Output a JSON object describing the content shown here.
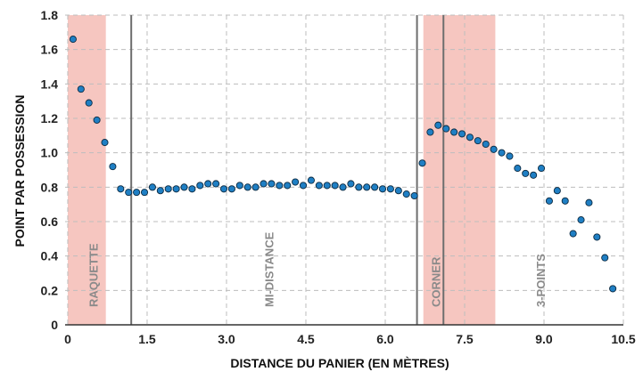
{
  "chart_data": {
    "type": "scatter",
    "title": "",
    "xlabel": "DISTANCE DU PANIER (EN MÈTRES)",
    "ylabel": "POINT PAR POSSESSION",
    "xlim": [
      -0.05,
      10.5
    ],
    "ylim": [
      0,
      1.8
    ],
    "x_ticks": [
      0,
      1.5,
      3.0,
      4.5,
      6.0,
      7.5,
      9.0,
      10.5
    ],
    "x_tick_labels": [
      "0",
      "1.5",
      "3.0",
      "4.5",
      "6.0",
      "7.5",
      "9.0",
      "10.5"
    ],
    "y_ticks": [
      0,
      0.2,
      0.4,
      0.6,
      0.8,
      1.0,
      1.2,
      1.4,
      1.6,
      1.8
    ],
    "y_tick_labels": [
      "0",
      "0.2",
      "0.4",
      "0.6",
      "0.8",
      "1.0",
      "1.2",
      "1.4",
      "1.6",
      "1.8"
    ],
    "grid": true,
    "marker_color": "#1f7fc4",
    "marker_edge_color": "#0d2a40",
    "shaded_regions": [
      {
        "x": [
          0,
          0.72
        ],
        "color": "#f6c6c0"
      },
      {
        "x": [
          6.72,
          8.08
        ],
        "color": "#f6c6c0"
      }
    ],
    "vertical_lines": [
      1.2,
      6.6,
      7.1
    ],
    "zone_labels": [
      {
        "text": "RAQUETTE",
        "x": 0.48
      },
      {
        "text": "MI-DISTANCE",
        "x": 3.8
      },
      {
        "text": "CORNER",
        "x": 6.95
      },
      {
        "text": "3-POINTS",
        "x": 8.93
      }
    ],
    "series": [
      {
        "x": [
          0.1,
          0.25,
          0.4,
          0.55,
          0.7,
          0.85,
          1.0,
          1.15,
          1.3,
          1.45,
          1.6,
          1.75,
          1.9,
          2.05,
          2.2,
          2.35,
          2.5,
          2.65,
          2.8,
          2.95,
          3.1,
          3.25,
          3.4,
          3.55,
          3.7,
          3.85,
          4.0,
          4.15,
          4.3,
          4.45,
          4.6,
          4.75,
          4.9,
          5.05,
          5.2,
          5.35,
          5.5,
          5.65,
          5.8,
          5.95,
          6.1,
          6.25,
          6.4,
          6.55,
          6.7,
          6.85,
          7.0,
          7.15,
          7.3,
          7.45,
          7.6,
          7.75,
          7.9,
          8.05,
          8.2,
          8.35,
          8.5,
          8.65,
          8.8,
          8.95,
          9.1,
          9.25,
          9.4,
          9.55,
          9.7,
          9.85,
          10.0,
          10.15,
          10.3
        ],
        "y": [
          1.66,
          1.37,
          1.29,
          1.19,
          1.06,
          0.92,
          0.79,
          0.77,
          0.77,
          0.77,
          0.8,
          0.78,
          0.79,
          0.79,
          0.8,
          0.79,
          0.81,
          0.82,
          0.82,
          0.79,
          0.79,
          0.81,
          0.8,
          0.8,
          0.82,
          0.82,
          0.81,
          0.81,
          0.83,
          0.81,
          0.84,
          0.81,
          0.81,
          0.81,
          0.8,
          0.82,
          0.8,
          0.8,
          0.8,
          0.79,
          0.79,
          0.78,
          0.76,
          0.75,
          0.94,
          1.12,
          1.16,
          1.14,
          1.12,
          1.11,
          1.09,
          1.07,
          1.05,
          1.02,
          1.0,
          0.98,
          0.91,
          0.88,
          0.87,
          0.91,
          0.72,
          0.78,
          0.72,
          0.53,
          0.61,
          0.71,
          0.51,
          0.39,
          0.21
        ]
      }
    ]
  }
}
